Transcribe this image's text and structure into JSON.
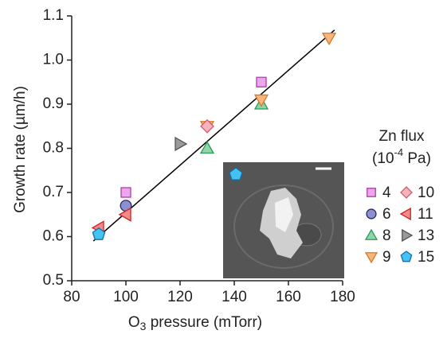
{
  "chart_data": {
    "type": "scatter",
    "xlabel": {
      "base": "O",
      "subscript": "3",
      "rest": " pressure (mTorr)"
    },
    "ylabel": "Growth rate (µm/h)",
    "xlim": [
      80,
      180
    ],
    "ylim": [
      0.5,
      1.1
    ],
    "xticks": [
      80,
      100,
      120,
      140,
      160,
      180
    ],
    "yticks": [
      0.5,
      0.6,
      0.7,
      0.8,
      0.9,
      {
        "value": 1,
        "label": "1.0"
      },
      1.1
    ],
    "legend_title": "Zn flux",
    "legend_unit": {
      "base": "(10",
      "superscript": "-4",
      "rest": " Pa)"
    },
    "fit_line": {
      "x": [
        88,
        177
      ],
      "values": [
        0.59,
        1.068
      ],
      "color": "#000000"
    },
    "series": [
      {
        "name": "4",
        "marker": "square",
        "color": "#eaa8ea",
        "edge_color": "#b03cb0",
        "x": [
          100,
          150
        ],
        "values": [
          0.7,
          0.95
        ]
      },
      {
        "name": "6",
        "marker": "circle",
        "color": "#8c90d0",
        "edge_color": "#2a2a60",
        "x": [
          100
        ],
        "values": [
          0.67
        ]
      },
      {
        "name": "8",
        "marker": "triangle-up",
        "color": "#90d4aa",
        "edge_color": "#2a9a58",
        "x": [
          130,
          150
        ],
        "values": [
          0.8,
          0.9
        ]
      },
      {
        "name": "9",
        "marker": "triangle-down",
        "color": "#f5b67f",
        "edge_color": "#d87a28",
        "x": [
          130,
          150,
          175
        ],
        "values": [
          0.85,
          0.91,
          1.05
        ]
      },
      {
        "name": "10",
        "marker": "diamond",
        "color": "#f6b3bb",
        "edge_color": "#d45a6a",
        "x": [
          130
        ],
        "values": [
          0.85
        ]
      },
      {
        "name": "11",
        "marker": "triangle-left",
        "color": "#f28a8a",
        "edge_color": "#d42020",
        "x": [
          90,
          100
        ],
        "values": [
          0.62,
          0.65
        ]
      },
      {
        "name": "13",
        "marker": "triangle-right",
        "color": "#9a9a9a",
        "edge_color": "#555555",
        "x": [
          120
        ],
        "values": [
          0.81
        ]
      },
      {
        "name": "15",
        "marker": "pentagon",
        "color": "#44c2f2",
        "edge_color": "#1070b0",
        "x": [
          90
        ],
        "values": [
          0.605
        ]
      }
    ]
  }
}
